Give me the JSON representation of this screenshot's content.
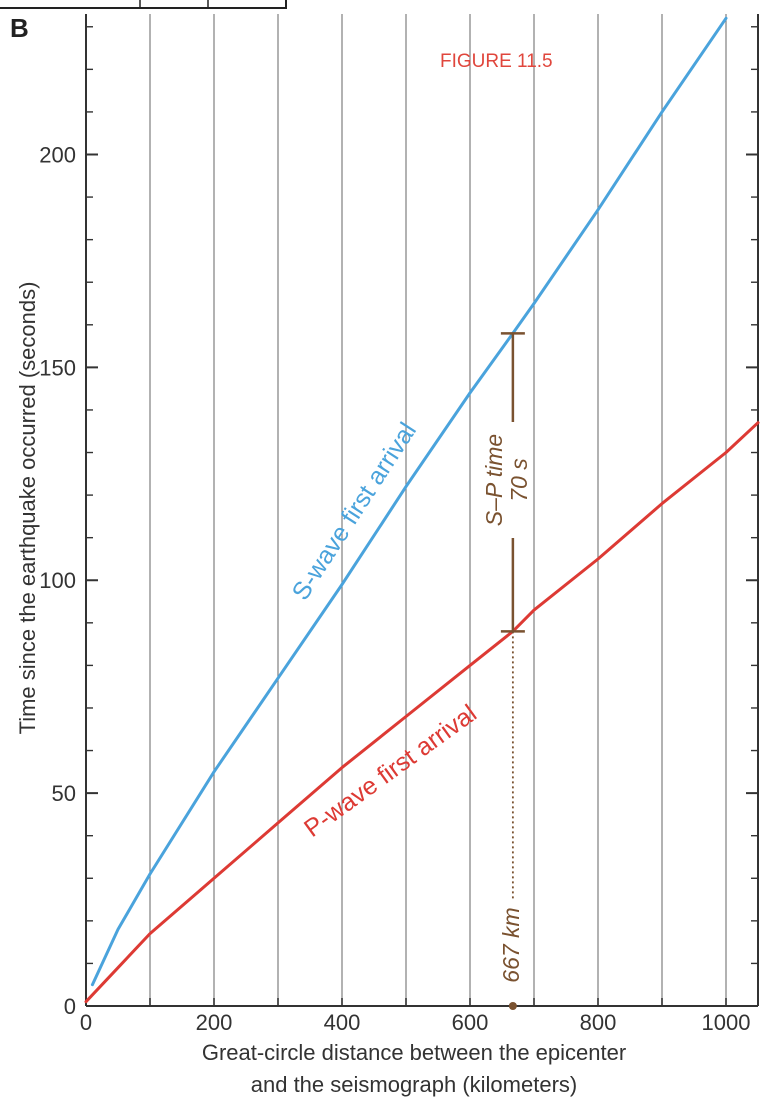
{
  "panel_label": "B",
  "figure_label": "FIGURE 11.5",
  "chart_data": {
    "type": "line",
    "xlabel_line1": "Great-circle distance between the epicenter",
    "xlabel_line2": "and the seismograph (kilometers)",
    "ylabel": "Time since the earthquake occurred (seconds)",
    "xlim": [
      0,
      1050
    ],
    "ylim": [
      0,
      233
    ],
    "x_ticks": [
      0,
      200,
      400,
      600,
      800,
      1000
    ],
    "y_ticks": [
      0,
      50,
      100,
      150,
      200
    ],
    "x_gridlines": [
      100,
      200,
      300,
      400,
      500,
      600,
      700,
      800,
      900,
      1000
    ],
    "grid": "vertical",
    "series": [
      {
        "name": "S-wave first arrival",
        "color": "#4aa3dc",
        "x": [
          10,
          50,
          100,
          200,
          300,
          400,
          500,
          600,
          667,
          700,
          800,
          900,
          1000
        ],
        "y": [
          5,
          18,
          31,
          55,
          77,
          99,
          122,
          144,
          158,
          165,
          187,
          210,
          232
        ]
      },
      {
        "name": "P-wave first arrival",
        "color": "#dd3a34",
        "x": [
          0,
          50,
          100,
          200,
          300,
          400,
          500,
          600,
          667,
          700,
          800,
          900,
          1000,
          1050
        ],
        "y": [
          1,
          9,
          17,
          30,
          43,
          56,
          68,
          80,
          88,
          93,
          105,
          118,
          130,
          137
        ]
      }
    ],
    "annotations": {
      "sp_interval": {
        "x": 667,
        "y_low": 88,
        "y_high": 158,
        "label_line1": "S–P time",
        "label_line2": "70 s",
        "color": "#7a5230"
      },
      "distance_marker": {
        "x": 667,
        "label": "667 km",
        "color": "#7a5230"
      }
    }
  },
  "colors": {
    "gridline": "#7f7f7f",
    "axis": "#333333",
    "figure_label": "#e0463c"
  }
}
